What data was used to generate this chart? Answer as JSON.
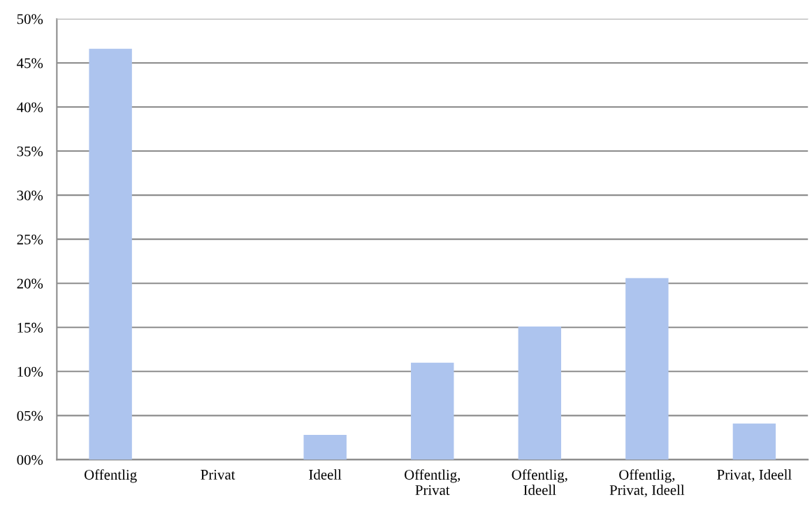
{
  "chart_data": {
    "type": "bar",
    "categories": [
      "Offentlig",
      "Privat",
      "Ideell",
      "Offentlig,\nPrivat",
      "Offentlig,\nIdeell",
      "Offentlig,\nPrivat, Ideell",
      "Privat, Ideell"
    ],
    "values": [
      46.6,
      0,
      2.8,
      11.0,
      15.1,
      20.6,
      4.1
    ],
    "color": "#adc4ee",
    "ylim": [
      0,
      50
    ],
    "yticks": [
      {
        "value": 0,
        "label": "00%"
      },
      {
        "value": 5,
        "label": "05%"
      },
      {
        "value": 10,
        "label": "10%"
      },
      {
        "value": 15,
        "label": "15%"
      },
      {
        "value": 20,
        "label": "20%"
      },
      {
        "value": 25,
        "label": "25%"
      },
      {
        "value": 30,
        "label": "30%"
      },
      {
        "value": 35,
        "label": "35%"
      },
      {
        "value": 40,
        "label": "40%"
      },
      {
        "value": 45,
        "label": "45%"
      },
      {
        "value": 50,
        "label": "50%"
      }
    ],
    "grid": "y"
  }
}
